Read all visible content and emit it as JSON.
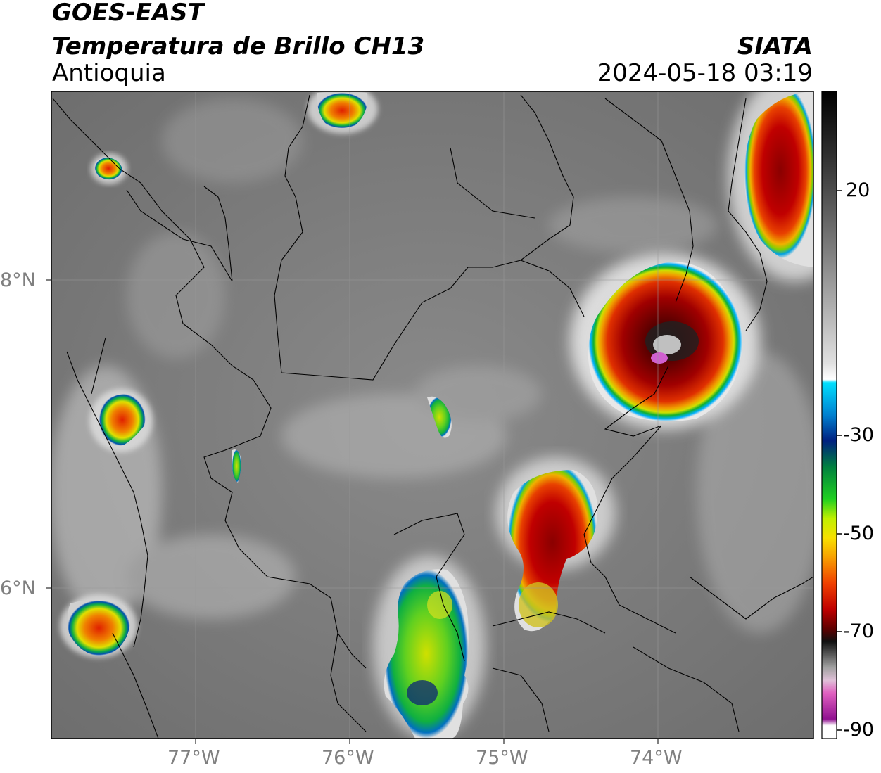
{
  "header": {
    "satellite": "GOES-EAST",
    "product": "Temperatura de Brillo CH13",
    "region": "Antioquia",
    "agency": "SIATA",
    "datetime": "2024-05-18 03:19"
  },
  "map": {
    "lon_labels": [
      "77°W",
      "76°W",
      "75°W",
      "74°W"
    ],
    "lat_labels": [
      "8°N",
      "6°N"
    ],
    "colorbar_labels": [
      "20",
      "-30",
      "-50",
      "-70",
      "-90"
    ],
    "colors": {
      "background_gray": "#7a7a7a",
      "cloud_light": "#d8d8d8",
      "cold_red": "#c00000",
      "coldest_dark": "#3a0000",
      "green": "#20c020",
      "yellow": "#e8e800",
      "cyan": "#00c8ff",
      "blue": "#0050b0",
      "magenta": "#d040d0"
    }
  }
}
